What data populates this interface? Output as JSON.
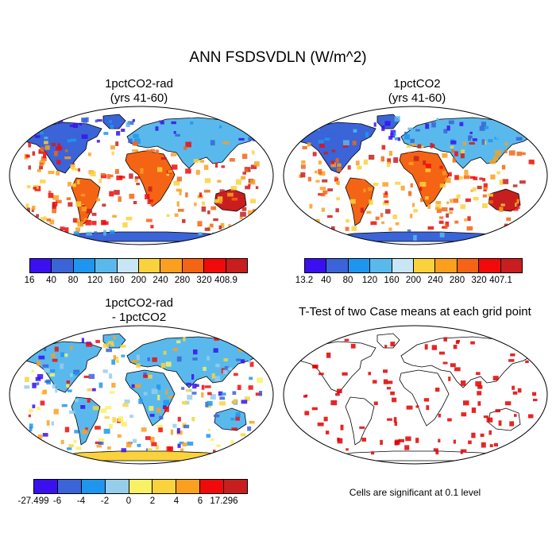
{
  "title": "ANN FSDSVDLN (W/m^2)",
  "panels": [
    {
      "title_line1": "1pctCO2-rad",
      "title_line2": "(yrs 41-60)",
      "colorbar": {
        "labels": [
          "16",
          "40",
          "80",
          "120",
          "160",
          "200",
          "240",
          "280",
          "320",
          "408.9"
        ],
        "colors": [
          "#3a10f0",
          "#3a64d8",
          "#1e96f0",
          "#5ab9ec",
          "#c8e6f5",
          "#fad23c",
          "#faa01e",
          "#f56414",
          "#f00a0a",
          "#c81e1e"
        ]
      }
    },
    {
      "title_line1": "1pctCO2",
      "title_line2": "(yrs 41-60)",
      "colorbar": {
        "labels": [
          "13.2",
          "40",
          "80",
          "120",
          "160",
          "200",
          "240",
          "280",
          "320",
          "407.1"
        ],
        "colors": [
          "#3a10f0",
          "#3a64d8",
          "#1e96f0",
          "#5ab9ec",
          "#c8e6f5",
          "#fad23c",
          "#faa01e",
          "#f56414",
          "#f00a0a",
          "#c81e1e"
        ]
      }
    },
    {
      "title_line1": "1pctCO2-rad",
      "title_line2": "- 1pctCO2",
      "colorbar": {
        "labels": [
          "-27.499",
          "-6",
          "-4",
          "-2",
          "0",
          "2",
          "4",
          "6",
          "17.296"
        ],
        "colors": [
          "#3a10f0",
          "#3a64d8",
          "#1e96f0",
          "#96cdeb",
          "#faf064",
          "#fad23c",
          "#faa01e",
          "#f00a0a",
          "#c81e1e"
        ]
      }
    },
    {
      "title_line1": "T-Test of two Case means at each grid point",
      "title_line2": "",
      "note": "Cells are significant at 0.1 level",
      "significance_color": "#e00000"
    }
  ]
}
